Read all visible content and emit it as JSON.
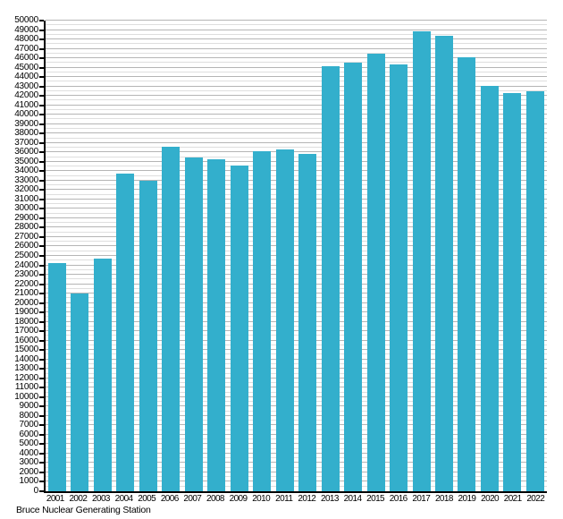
{
  "figure": {
    "background": "#ffffff"
  },
  "chart_data": {
    "type": "bar",
    "title": "",
    "caption": "Bruce Nuclear Generating Station",
    "xlabel": "",
    "ylabel": "",
    "categories": [
      "2001",
      "2002",
      "2003",
      "2004",
      "2005",
      "2006",
      "2007",
      "2008",
      "2009",
      "2010",
      "2011",
      "2012",
      "2013",
      "2014",
      "2015",
      "2016",
      "2017",
      "2018",
      "2019",
      "2020",
      "2021",
      "2022"
    ],
    "values": [
      24200,
      21000,
      24700,
      33700,
      33000,
      36600,
      35500,
      35300,
      34600,
      36100,
      36300,
      35800,
      45200,
      45500,
      46500,
      45300,
      48900,
      48400,
      46100,
      43100,
      42300,
      42500
    ],
    "ylim": [
      0,
      50000
    ],
    "y_major_step": 1000,
    "y_minor_step": 500,
    "y_tick_labels": [
      0,
      1000,
      2000,
      3000,
      4000,
      5000,
      6000,
      7000,
      8000,
      9000,
      10000,
      11000,
      12000,
      13000,
      14000,
      15000,
      16000,
      17000,
      18000,
      19000,
      20000,
      21000,
      22000,
      23000,
      24000,
      25000,
      26000,
      27000,
      28000,
      29000,
      30000,
      31000,
      32000,
      33000,
      34000,
      35000,
      36000,
      37000,
      38000,
      39000,
      40000,
      41000,
      42000,
      43000,
      44000,
      45000,
      46000,
      47000,
      48000,
      49000,
      50000
    ],
    "grid": true,
    "legend_position": "none",
    "bar_color": "#33afcc",
    "axis_color": "#000000",
    "grid_major_color": "#b5b5b5",
    "grid_minor_color": "#dedede"
  }
}
